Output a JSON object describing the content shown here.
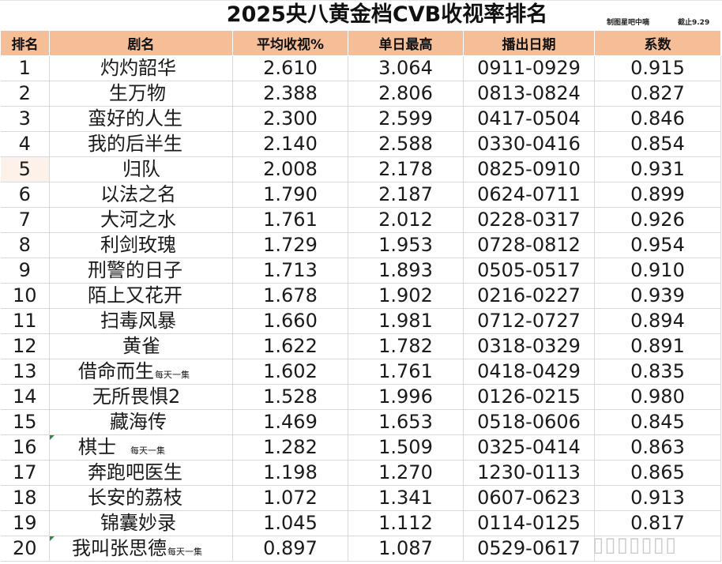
{
  "title": "2025央八黄金档CVB收视率排名",
  "credit": "制图星吧中嘀",
  "as_of": "截止9.29",
  "headers": [
    "排名",
    "剧名",
    "平均收视%",
    "单日最高",
    "播出日期",
    "系数"
  ],
  "rows": [
    {
      "rank": "1",
      "name": "灼灼韶华",
      "note": "",
      "avg": "2.610",
      "peak": "3.064",
      "dates": "0911-0929",
      "coef": "0.915"
    },
    {
      "rank": "2",
      "name": "生万物",
      "note": "",
      "avg": "2.388",
      "peak": "2.806",
      "dates": "0813-0824",
      "coef": "0.827"
    },
    {
      "rank": "3",
      "name": "蛮好的人生",
      "note": "",
      "avg": "2.300",
      "peak": "2.599",
      "dates": "0417-0504",
      "coef": "0.846"
    },
    {
      "rank": "4",
      "name": "我的后半生",
      "note": "",
      "avg": "2.140",
      "peak": "2.588",
      "dates": "0330-0416",
      "coef": "0.854"
    },
    {
      "rank": "5",
      "name": "归队",
      "note": "",
      "avg": "2.008",
      "peak": "2.178",
      "dates": "0825-0910",
      "coef": "0.931"
    },
    {
      "rank": "6",
      "name": "以法之名",
      "note": "",
      "avg": "1.790",
      "peak": "2.187",
      "dates": "0624-0711",
      "coef": "0.899"
    },
    {
      "rank": "7",
      "name": "大河之水",
      "note": "",
      "avg": "1.761",
      "peak": "2.012",
      "dates": "0228-0317",
      "coef": "0.926"
    },
    {
      "rank": "8",
      "name": "利剑玫瑰",
      "note": "",
      "avg": "1.729",
      "peak": "1.953",
      "dates": "0728-0812",
      "coef": "0.954"
    },
    {
      "rank": "9",
      "name": "刑警的日子",
      "note": "",
      "avg": "1.713",
      "peak": "1.893",
      "dates": "0505-0517",
      "coef": "0.910"
    },
    {
      "rank": "10",
      "name": "陌上又花开",
      "note": "",
      "avg": "1.678",
      "peak": "1.902",
      "dates": "0216-0227",
      "coef": "0.939"
    },
    {
      "rank": "11",
      "name": "扫毒风暴",
      "note": "",
      "avg": "1.660",
      "peak": "1.981",
      "dates": "0712-0727",
      "coef": "0.894"
    },
    {
      "rank": "12",
      "name": "黄雀",
      "note": "",
      "avg": "1.622",
      "peak": "1.782",
      "dates": "0318-0329",
      "coef": "0.891"
    },
    {
      "rank": "13",
      "name": "借命而生",
      "note": "每天一集",
      "avg": "1.602",
      "peak": "1.761",
      "dates": "0418-0429",
      "coef": "0.835"
    },
    {
      "rank": "14",
      "name": "无所畏惧2",
      "note": "",
      "avg": "1.528",
      "peak": "1.996",
      "dates": "0126-0215",
      "coef": "0.980"
    },
    {
      "rank": "15",
      "name": "藏海传",
      "note": "",
      "avg": "1.469",
      "peak": "1.653",
      "dates": "0518-0606",
      "coef": "0.845"
    },
    {
      "rank": "16",
      "name": "棋士",
      "note": "每天一集",
      "avg": "1.282",
      "peak": "1.509",
      "dates": "0325-0414",
      "coef": "0.863"
    },
    {
      "rank": "17",
      "name": "奔跑吧医生",
      "note": "",
      "avg": "1.198",
      "peak": "1.270",
      "dates": "1230-0113",
      "coef": "0.865"
    },
    {
      "rank": "18",
      "name": "长安的荔枝",
      "note": "",
      "avg": "1.072",
      "peak": "1.341",
      "dates": "0607-0623",
      "coef": "0.913"
    },
    {
      "rank": "19",
      "name": "锦囊妙录",
      "note": "",
      "avg": "1.045",
      "peak": "1.112",
      "dates": "0114-0125",
      "coef": "0.817"
    },
    {
      "rank": "20",
      "name": "我叫张思德",
      "note": "每天一集",
      "avg": "0.897",
      "peak": "1.087",
      "dates": "0529-0617",
      "coef": ""
    }
  ],
  "colors": {
    "header_bg": "#f6be97",
    "flag": "#2e8b3e",
    "grid": "#d9d9d9"
  },
  "watermark_icon": "weibo-watermark-icon"
}
